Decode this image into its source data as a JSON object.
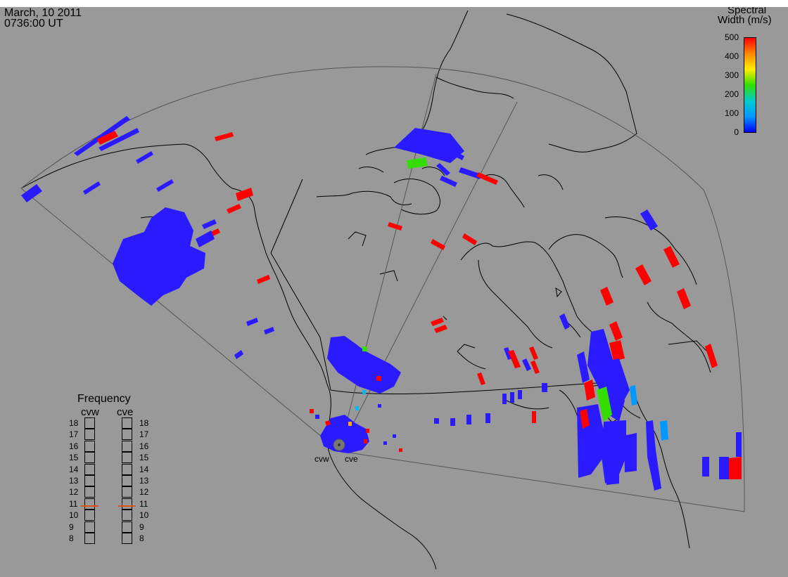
{
  "header": {
    "date": "March, 10 2011",
    "time": "0736:00 UT"
  },
  "legend": {
    "title_line1": "Spectral",
    "title_line2": "Width (m/s)",
    "ticks": [
      "500",
      "400",
      "300",
      "200",
      "100",
      "0"
    ],
    "gradient_colors": [
      "#ff0000",
      "#ff8800",
      "#ffee00",
      "#33dd00",
      "#00cccc",
      "#0099ff",
      "#0000ff"
    ]
  },
  "frequency_panel": {
    "title": "Frequency",
    "radars": [
      "cvw",
      "cve"
    ],
    "scale": [
      "18",
      "17",
      "16",
      "15",
      "14",
      "13",
      "12",
      "11",
      "10",
      "9",
      "8"
    ],
    "selected_mhz": {
      "cvw": 10.8,
      "cve": 10.8
    },
    "marker_color": "#e0561a"
  },
  "radar_sites": [
    "cvw",
    "cve"
  ],
  "colors": {
    "background": "#999999",
    "map_lines": "#000000",
    "fov_lines": "#555555",
    "low_width": "#2a1aff",
    "high_width": "#ff0000",
    "mid_width": "#33dd00",
    "cyan_width": "#00bbee"
  }
}
